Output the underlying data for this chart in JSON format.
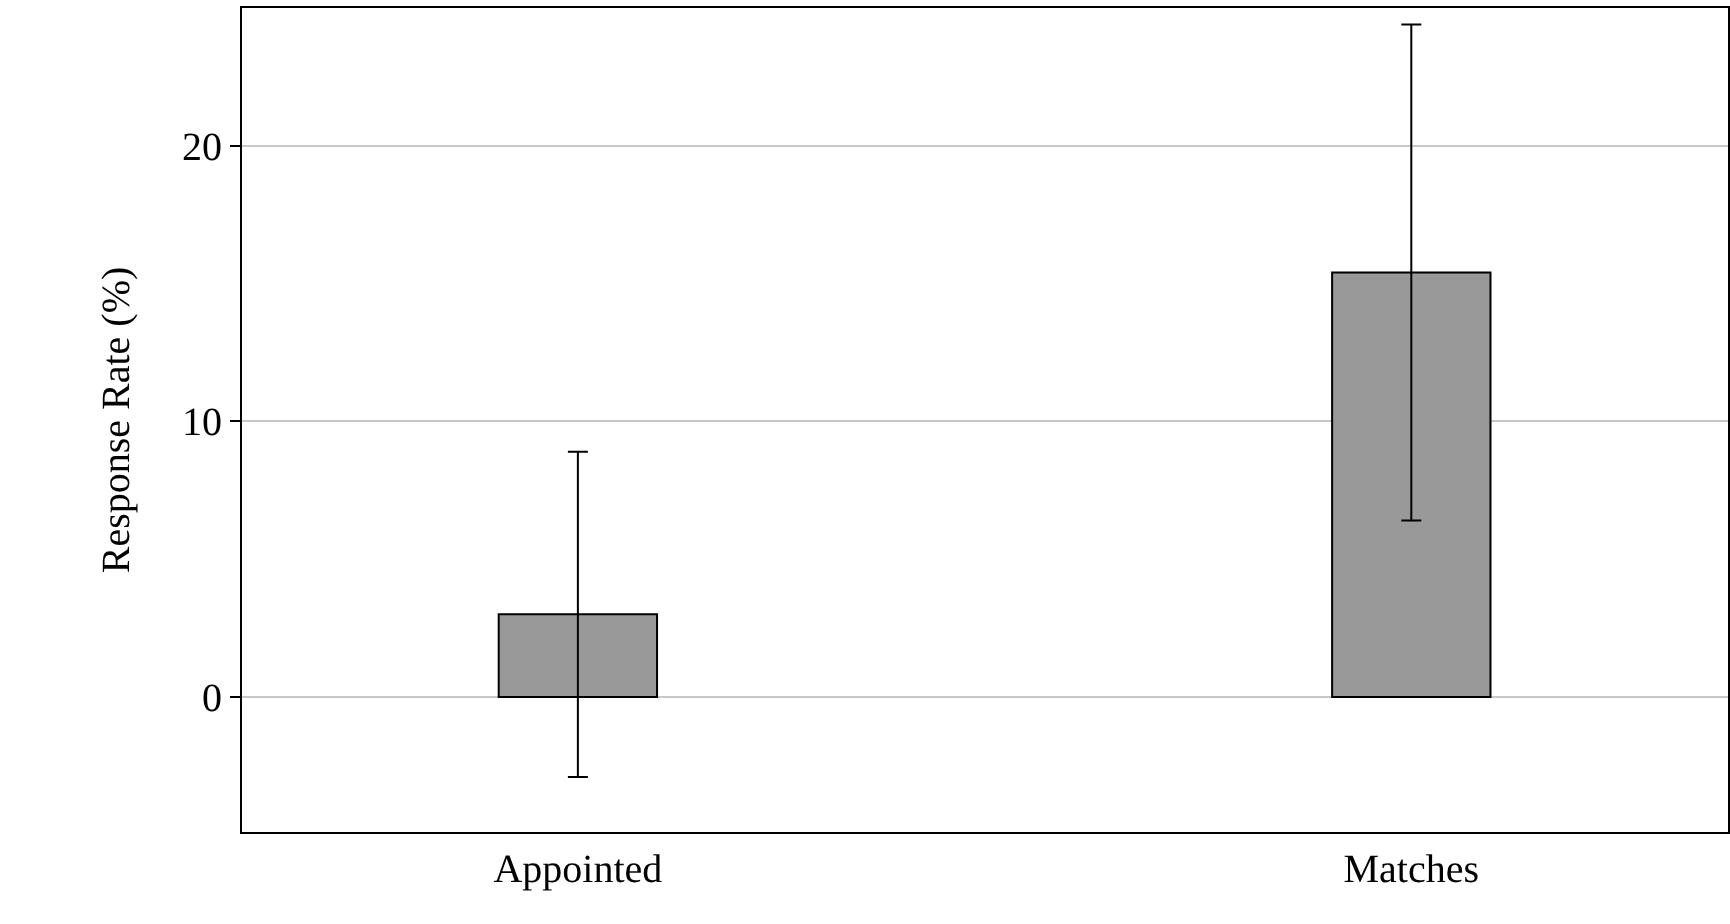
{
  "chart_data": {
    "type": "bar",
    "ylabel": "Response Rate (%)",
    "categories": [
      "Appointed",
      "Matches"
    ],
    "values": [
      3.0,
      15.4
    ],
    "errors": [
      5.9,
      9.0
    ],
    "color": "#999999",
    "ylim": [
      -4.9,
      25
    ],
    "yticks": [
      0,
      10,
      20
    ],
    "grid": "y"
  }
}
